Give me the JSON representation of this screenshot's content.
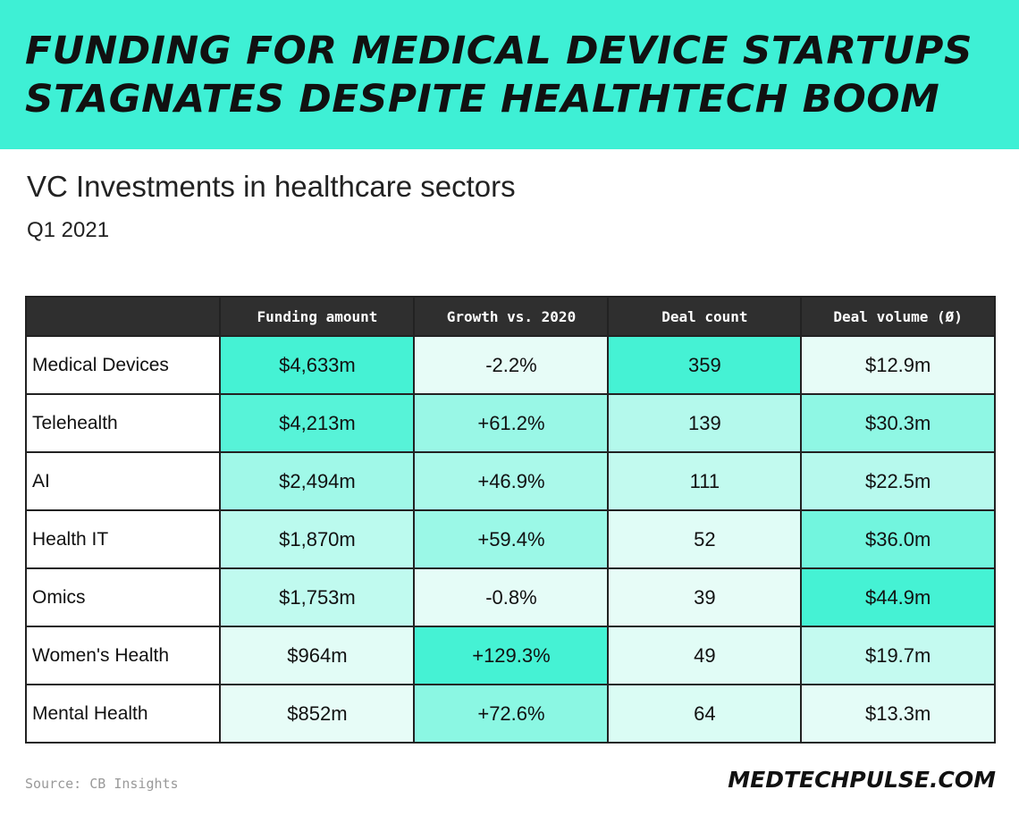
{
  "title": "Funding for medical device startups stagnates despite healthtech boom",
  "subtitle": "VC Investments in healthcare sectors",
  "period": "Q1 2021",
  "source": "Source: CB Insights",
  "brand": "MEDTECHPULSE.COM",
  "colors": {
    "banner": "#3ef0d5",
    "heat_low": "#effdf9",
    "heat_high": "#45f2d4",
    "header_bg": "#2f2f2f"
  },
  "chart_data": {
    "type": "table",
    "columns": [
      "",
      "Funding amount",
      "Growth vs. 2020",
      "Deal count",
      "Deal volume (Ø)"
    ],
    "rows": [
      {
        "sector": "Medical Devices",
        "funding": "$4,633m",
        "growth": "-2.2%",
        "deals": "359",
        "volume": "$12.9m"
      },
      {
        "sector": "Telehealth",
        "funding": "$4,213m",
        "growth": "+61.2%",
        "deals": "139",
        "volume": "$30.3m"
      },
      {
        "sector": "AI",
        "funding": "$2,494m",
        "growth": "+46.9%",
        "deals": "111",
        "volume": "$22.5m"
      },
      {
        "sector": "Health IT",
        "funding": "$1,870m",
        "growth": "+59.4%",
        "deals": "52",
        "volume": "$36.0m"
      },
      {
        "sector": "Omics",
        "funding": "$1,753m",
        "growth": "-0.8%",
        "deals": "39",
        "volume": "$44.9m"
      },
      {
        "sector": "Women's Health",
        "funding": "$964m",
        "growth": "+129.3%",
        "deals": "49",
        "volume": "$19.7m"
      },
      {
        "sector": "Mental Health",
        "funding": "$852m",
        "growth": "+72.6%",
        "deals": "64",
        "volume": "$13.3m"
      }
    ]
  }
}
